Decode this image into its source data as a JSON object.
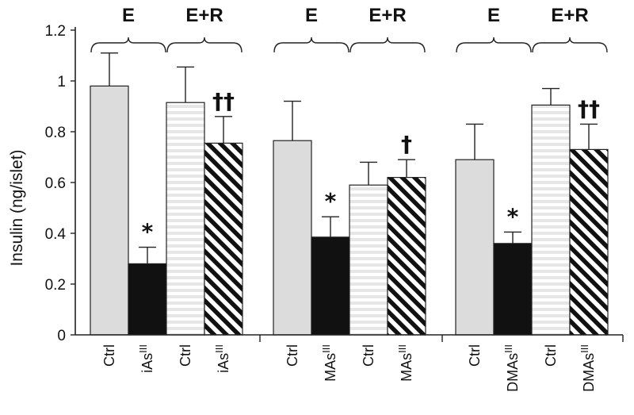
{
  "chart_data": {
    "type": "bar",
    "title": "",
    "ylabel": "Insulin (ng/islet)",
    "ylim": [
      0,
      1.2
    ],
    "yticks": [
      "0",
      "0.2",
      "0.4",
      "0.6",
      "0.8",
      "1",
      "1.2"
    ],
    "grid": false,
    "legend": "none",
    "panels": [
      {
        "groups": [
          {
            "label": "E",
            "bars": [
              {
                "category": "Ctrl",
                "value": 0.98,
                "error": 0.13,
                "fill": "light-gray",
                "annotation": ""
              },
              {
                "category": "iAs",
                "superscript": "III",
                "value": 0.28,
                "error": 0.065,
                "fill": "black",
                "annotation": "*"
              }
            ]
          },
          {
            "label": "E+R",
            "bars": [
              {
                "category": "Ctrl",
                "value": 0.915,
                "error": 0.14,
                "fill": "horizontal-stripes",
                "annotation": ""
              },
              {
                "category": "iAs",
                "superscript": "III",
                "value": 0.755,
                "error": 0.105,
                "fill": "diagonal-stripes",
                "annotation": "††"
              }
            ]
          }
        ]
      },
      {
        "groups": [
          {
            "label": "E",
            "bars": [
              {
                "category": "Ctrl",
                "value": 0.765,
                "error": 0.155,
                "fill": "light-gray",
                "annotation": ""
              },
              {
                "category": "MAs",
                "superscript": "III",
                "value": 0.385,
                "error": 0.08,
                "fill": "black",
                "annotation": "*"
              }
            ]
          },
          {
            "label": "E+R",
            "bars": [
              {
                "category": "Ctrl",
                "value": 0.59,
                "error": 0.09,
                "fill": "horizontal-stripes",
                "annotation": ""
              },
              {
                "category": "MAs",
                "superscript": "III",
                "value": 0.62,
                "error": 0.07,
                "fill": "diagonal-stripes",
                "annotation": "†"
              }
            ]
          }
        ]
      },
      {
        "groups": [
          {
            "label": "E",
            "bars": [
              {
                "category": "Ctrl",
                "value": 0.69,
                "error": 0.14,
                "fill": "light-gray",
                "annotation": ""
              },
              {
                "category": "DMAs",
                "superscript": "III",
                "value": 0.36,
                "error": 0.045,
                "fill": "black",
                "annotation": "*"
              }
            ]
          },
          {
            "label": "E+R",
            "bars": [
              {
                "category": "Ctrl",
                "value": 0.905,
                "error": 0.065,
                "fill": "horizontal-stripes",
                "annotation": ""
              },
              {
                "category": "DMAs",
                "superscript": "III",
                "value": 0.73,
                "error": 0.1,
                "fill": "diagonal-stripes",
                "annotation": "††"
              }
            ]
          }
        ]
      }
    ],
    "colors": {
      "light_gray": "#dcdcdc",
      "stripe_light": "#e8e8e8",
      "black": "#111111",
      "axis": "#222222"
    }
  }
}
